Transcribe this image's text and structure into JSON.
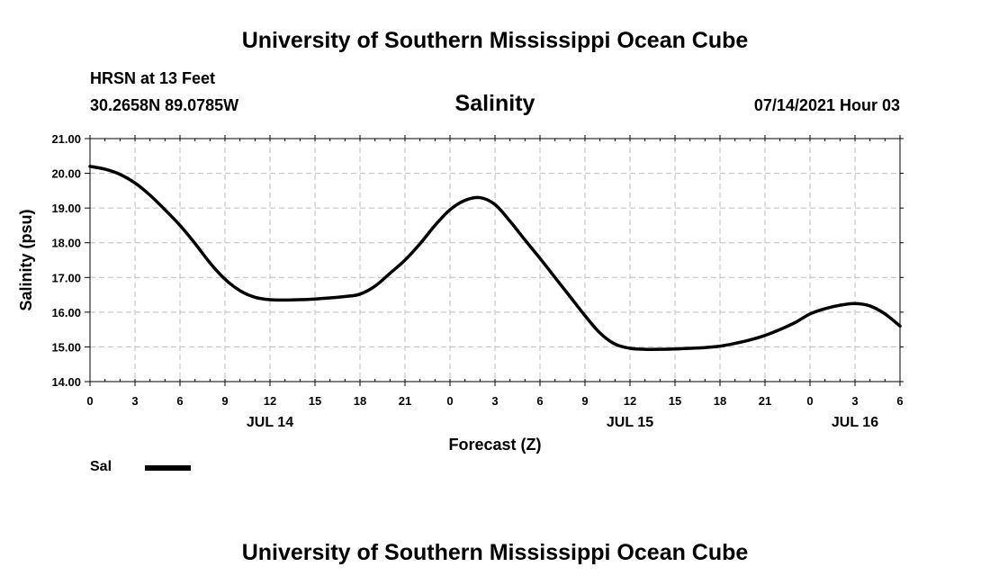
{
  "header": {
    "top_title": "University of Southern Mississippi Ocean Cube",
    "station": "HRSN at 13 Feet",
    "coords": "30.2658N  89.0785W",
    "chart_title": "Salinity",
    "datetime": "07/14/2021 Hour 03"
  },
  "footer": {
    "bottom_title": "University of Southern Mississippi Ocean Cube"
  },
  "legend": {
    "label": "Sal",
    "color": "#000000"
  },
  "chart_data": {
    "type": "line",
    "title": "Salinity",
    "xlabel": "Forecast (Z)",
    "ylabel": "Salinity (psu)",
    "x_unit": "hours from 00Z JUL 14",
    "xlim": [
      0,
      54
    ],
    "ylim": [
      14,
      21
    ],
    "yticks": [
      "14.00",
      "15.00",
      "16.00",
      "17.00",
      "18.00",
      "19.00",
      "20.00",
      "21.00"
    ],
    "ytick_values": [
      14,
      15,
      16,
      17,
      18,
      19,
      20,
      21
    ],
    "xtick_values": [
      0,
      3,
      6,
      9,
      12,
      15,
      18,
      21,
      24,
      27,
      30,
      33,
      36,
      39,
      42,
      45,
      48,
      51,
      54
    ],
    "xticks": [
      "0",
      "3",
      "6",
      "9",
      "12",
      "15",
      "18",
      "21",
      "0",
      "3",
      "6",
      "9",
      "12",
      "15",
      "18",
      "21",
      "0",
      "3",
      "6"
    ],
    "date_labels": [
      {
        "label": "JUL 14",
        "x": 12
      },
      {
        "label": "JUL 15",
        "x": 36
      },
      {
        "label": "JUL 16",
        "x": 51
      }
    ],
    "grid": true,
    "series": [
      {
        "name": "Sal",
        "x": [
          0,
          1,
          2,
          3,
          4,
          5,
          6,
          7,
          8,
          9,
          10,
          11,
          12,
          13,
          14,
          15,
          16,
          17,
          18,
          19,
          20,
          21,
          22,
          23,
          24,
          25,
          26,
          27,
          28,
          29,
          30,
          31,
          32,
          33,
          34,
          35,
          36,
          37,
          38,
          39,
          40,
          41,
          42,
          43,
          44,
          45,
          46,
          47,
          48,
          49,
          50,
          51,
          52,
          53,
          54
        ],
        "values": [
          20.2,
          20.12,
          19.97,
          19.72,
          19.37,
          18.95,
          18.5,
          17.98,
          17.42,
          16.95,
          16.62,
          16.43,
          16.36,
          16.35,
          16.36,
          16.38,
          16.41,
          16.45,
          16.52,
          16.75,
          17.12,
          17.5,
          17.97,
          18.5,
          18.95,
          19.22,
          19.3,
          19.1,
          18.62,
          18.08,
          17.55,
          17.0,
          16.45,
          15.9,
          15.4,
          15.08,
          14.96,
          14.93,
          14.93,
          14.94,
          14.96,
          14.98,
          15.02,
          15.1,
          15.2,
          15.33,
          15.5,
          15.7,
          15.95,
          16.1,
          16.2,
          16.25,
          16.18,
          15.95,
          15.6
        ]
      }
    ]
  }
}
